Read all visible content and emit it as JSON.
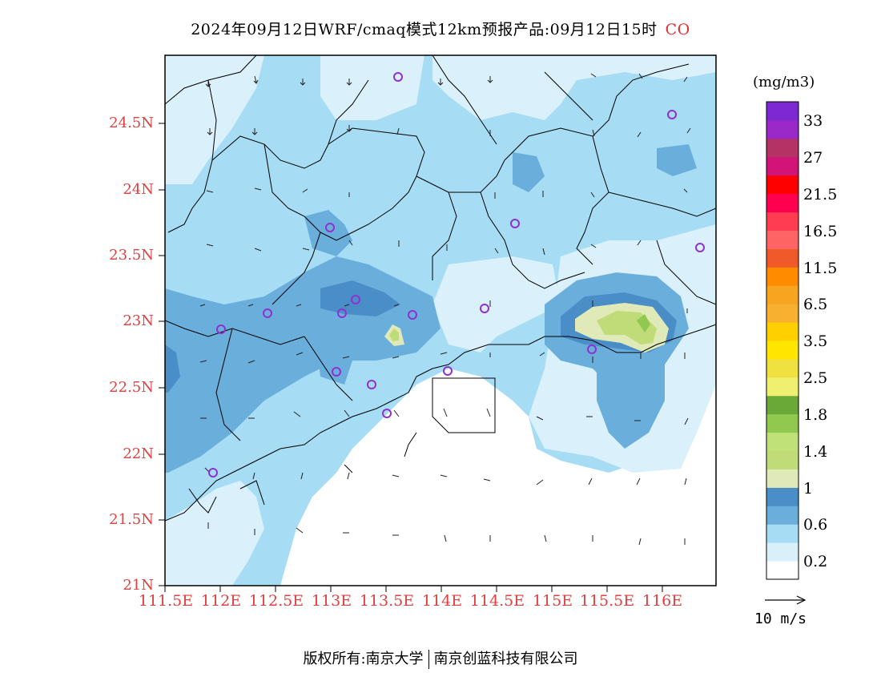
{
  "header": {
    "title": "2024年09月12日WRF/cmaq模式12km预报产品:09月12日15时",
    "species": "CO"
  },
  "map": {
    "lat_ticks": [
      "24.5N",
      "24N",
      "23.5N",
      "23N",
      "22.5N",
      "22N",
      "21.5N",
      "21N"
    ],
    "lon_ticks": [
      "111.5E",
      "112E",
      "112.5E",
      "113E",
      "113.5E",
      "114E",
      "114.5E",
      "115E",
      "115.5E",
      "116E"
    ],
    "colors": {
      "land_base": "#a6dcf4",
      "light": "#daf0fa",
      "medium": "#6aaedc",
      "dark": "#4a8ec8",
      "pale_green": "#dfeab8",
      "green": "#c0dc78",
      "green_dark": "#90c850",
      "station_marker": "#9030d0",
      "label_red": "#e04040"
    }
  },
  "colorbar": {
    "unit": "(mg/m3)",
    "colors": [
      "#ffffff",
      "#d9eff9",
      "#a6dcf4",
      "#6aaedc",
      "#4a8ec8",
      "#dfeab8",
      "#c0dc78",
      "#c0e078",
      "#90c850",
      "#6aa838",
      "#f0f070",
      "#f0e040",
      "#ffe600",
      "#ffd000",
      "#f8b030",
      "#f7a420",
      "#ff8c00",
      "#f05a28",
      "#ff6464",
      "#ff3c50",
      "#ff0050",
      "#ff0000",
      "#d21478",
      "#b43264",
      "#9b28c8",
      "#7d28d2"
    ],
    "labels": [
      "0.2",
      "0.6",
      "1",
      "1.4",
      "1.8",
      "2.5",
      "3.5",
      "6.5",
      "11.5",
      "16.5",
      "21.5",
      "27",
      "33"
    ]
  },
  "wind_reference": {
    "label": "10 m/s"
  },
  "footer": {
    "copyright_label": "版权所有:",
    "org1": "南京大学",
    "org2": "南京创蓝科技有限公司"
  }
}
